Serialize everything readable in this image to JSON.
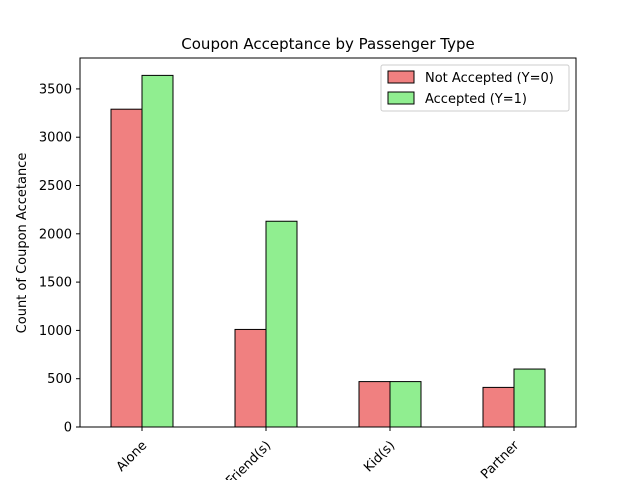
{
  "chart_data": {
    "type": "bar",
    "title": "Coupon Acceptance by Passenger Type",
    "xlabel": "",
    "ylabel": "Count of Coupon Accetance",
    "categories": [
      "Alone",
      "Friend(s)",
      "Kid(s)",
      "Partner"
    ],
    "series": [
      {
        "name": "Not Accepted (Y=0)",
        "values": [
          3290,
          1010,
          470,
          410
        ],
        "color": "#f08080"
      },
      {
        "name": "Accepted (Y=1)",
        "values": [
          3640,
          2130,
          470,
          600
        ],
        "color": "#90ee90"
      }
    ],
    "ylim": [
      0,
      3820
    ],
    "yticks": [
      0,
      500,
      1000,
      1500,
      2000,
      2500,
      3000,
      3500
    ],
    "grid": false,
    "legend_position": "top-right",
    "xtick_rotation": 45
  }
}
